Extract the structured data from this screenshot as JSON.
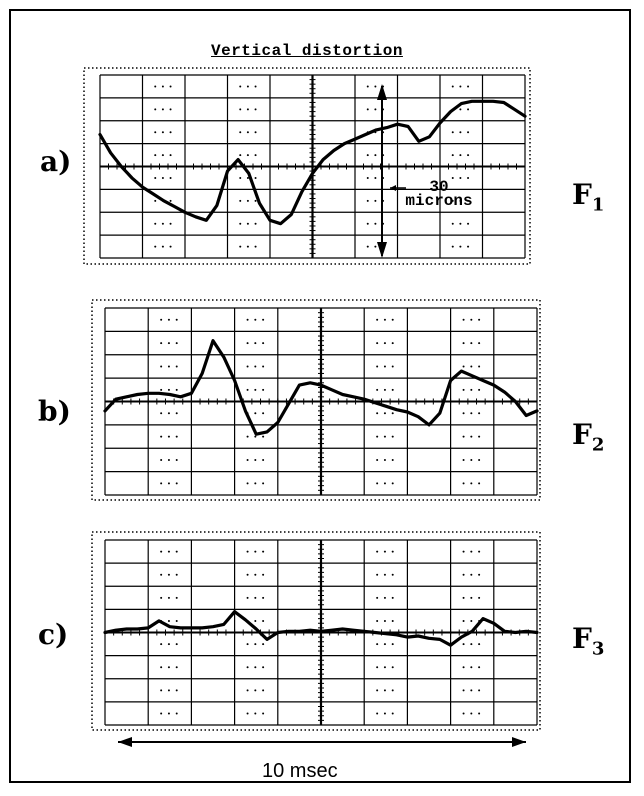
{
  "figure": {
    "title": "Vertical distortion",
    "scale_annotation_value": "30",
    "scale_annotation_unit": "microns",
    "time_label": "10 msec"
  },
  "panels": [
    {
      "label": "a)",
      "trace": "F",
      "trace_sub": "1"
    },
    {
      "label": "b)",
      "trace": "F",
      "trace_sub": "2"
    },
    {
      "label": "c)",
      "trace": "F",
      "trace_sub": "3"
    }
  ],
  "chart_data": [
    {
      "type": "line",
      "title": "Vertical distortion",
      "series": [
        {
          "name": "F1",
          "x": [
            0,
            0.25,
            0.5,
            0.75,
            1,
            1.25,
            1.5,
            1.75,
            2,
            2.25,
            2.5,
            2.75,
            3,
            3.25,
            3.5,
            3.75,
            4,
            4.25,
            4.5,
            4.75,
            5,
            5.25,
            5.5,
            5.75,
            6,
            6.25,
            6.5,
            6.75,
            7,
            7.25,
            7.5,
            7.75,
            8,
            8.25,
            8.5,
            8.75,
            9,
            9.25,
            9.5,
            9.75,
            10
          ],
          "y": [
            1.4,
            0.6,
            0.0,
            -0.5,
            -0.9,
            -1.2,
            -1.5,
            -1.75,
            -2.0,
            -2.2,
            -2.35,
            -1.7,
            -0.2,
            0.3,
            -0.3,
            -1.6,
            -2.35,
            -2.5,
            -2.1,
            -1.1,
            -0.3,
            0.3,
            0.7,
            1.0,
            1.2,
            1.4,
            1.6,
            1.7,
            1.85,
            1.75,
            1.1,
            1.3,
            1.9,
            2.4,
            2.75,
            2.85,
            2.85,
            2.85,
            2.8,
            2.5,
            2.2
          ]
        }
      ],
      "ylim": [
        -4,
        4
      ]
    },
    {
      "type": "line",
      "series": [
        {
          "name": "F2",
          "x": [
            0,
            0.25,
            0.5,
            0.75,
            1,
            1.25,
            1.5,
            1.75,
            2,
            2.25,
            2.5,
            2.75,
            3,
            3.25,
            3.5,
            3.75,
            4,
            4.25,
            4.5,
            4.75,
            5,
            5.25,
            5.5,
            5.75,
            6,
            6.25,
            6.5,
            6.75,
            7,
            7.25,
            7.5,
            7.75,
            8,
            8.25,
            8.5,
            8.75,
            9,
            9.25,
            9.5,
            9.75,
            10
          ],
          "y": [
            -0.4,
            0.1,
            0.2,
            0.3,
            0.35,
            0.35,
            0.3,
            0.2,
            0.35,
            1.2,
            2.6,
            1.9,
            0.9,
            -0.4,
            -1.4,
            -1.3,
            -0.9,
            -0.1,
            0.7,
            0.8,
            0.7,
            0.5,
            0.3,
            0.2,
            0.1,
            -0.05,
            -0.2,
            -0.35,
            -0.45,
            -0.65,
            -1.0,
            -0.5,
            0.9,
            1.3,
            1.1,
            0.9,
            0.7,
            0.4,
            0.0,
            -0.6,
            -0.4
          ]
        }
      ],
      "ylim": [
        -4,
        4
      ]
    },
    {
      "type": "line",
      "series": [
        {
          "name": "F3",
          "x": [
            0,
            0.25,
            0.5,
            0.75,
            1,
            1.25,
            1.5,
            1.75,
            2,
            2.25,
            2.5,
            2.75,
            3,
            3.25,
            3.5,
            3.75,
            4,
            4.25,
            4.5,
            4.75,
            5,
            5.25,
            5.5,
            5.75,
            6,
            6.25,
            6.5,
            6.75,
            7,
            7.25,
            7.5,
            7.75,
            8,
            8.25,
            8.5,
            8.75,
            9,
            9.25,
            9.5,
            9.75,
            10
          ],
          "y": [
            0.0,
            0.1,
            0.15,
            0.15,
            0.2,
            0.5,
            0.25,
            0.2,
            0.2,
            0.2,
            0.25,
            0.35,
            0.9,
            0.55,
            0.15,
            -0.3,
            0.0,
            0.05,
            0.05,
            0.1,
            0.05,
            0.1,
            0.15,
            0.1,
            0.05,
            0.0,
            -0.05,
            -0.1,
            -0.2,
            -0.15,
            -0.25,
            -0.3,
            -0.55,
            -0.2,
            0.05,
            0.6,
            0.4,
            0.05,
            0.0,
            0.05,
            0.0
          ]
        }
      ],
      "ylim": [
        -4,
        4
      ]
    }
  ]
}
